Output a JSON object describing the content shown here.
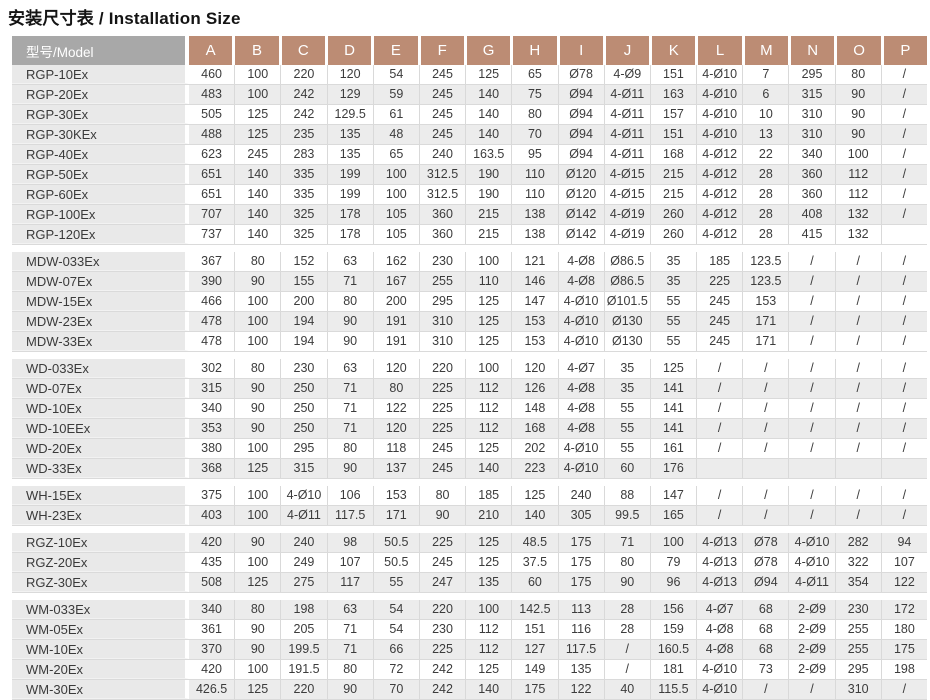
{
  "title": "安装尺寸表 / Installation Size",
  "colors": {
    "header_model_bg": "#a8a8a8",
    "header_letter_bg": "#bc8c74",
    "stripe_bg": "#ececec",
    "name_col_bg": "#e9e9e9"
  },
  "table": {
    "model_header": "型号/Model",
    "columns": [
      "A",
      "B",
      "C",
      "D",
      "E",
      "F",
      "G",
      "H",
      "I",
      "J",
      "K",
      "L",
      "M",
      "N",
      "O",
      "P"
    ],
    "sections": [
      {
        "group": "RGP",
        "rows": [
          {
            "model": "RGP-10Ex",
            "values": [
              "460",
              "100",
              "220",
              "120",
              "54",
              "245",
              "125",
              "65",
              "Ø78",
              "4-Ø9",
              "151",
              "4-Ø10",
              "7",
              "295",
              "80",
              "/"
            ]
          },
          {
            "model": "RGP-20Ex",
            "values": [
              "483",
              "100",
              "242",
              "129",
              "59",
              "245",
              "140",
              "75",
              "Ø94",
              "4-Ø11",
              "163",
              "4-Ø10",
              "6",
              "315",
              "90",
              "/"
            ]
          },
          {
            "model": "RGP-30Ex",
            "values": [
              "505",
              "125",
              "242",
              "129.5",
              "61",
              "245",
              "140",
              "80",
              "Ø94",
              "4-Ø11",
              "157",
              "4-Ø10",
              "10",
              "310",
              "90",
              "/"
            ]
          },
          {
            "model": "RGP-30KEx",
            "values": [
              "488",
              "125",
              "235",
              "135",
              "48",
              "245",
              "140",
              "70",
              "Ø94",
              "4-Ø11",
              "151",
              "4-Ø10",
              "13",
              "310",
              "90",
              "/"
            ]
          },
          {
            "model": "RGP-40Ex",
            "values": [
              "623",
              "245",
              "283",
              "135",
              "65",
              "240",
              "163.5",
              "95",
              "Ø94",
              "4-Ø11",
              "168",
              "4-Ø12",
              "22",
              "340",
              "100",
              "/"
            ]
          },
          {
            "model": "RGP-50Ex",
            "values": [
              "651",
              "140",
              "335",
              "199",
              "100",
              "312.5",
              "190",
              "110",
              "Ø120",
              "4-Ø15",
              "215",
              "4-Ø12",
              "28",
              "360",
              "112",
              "/"
            ]
          },
          {
            "model": "RGP-60Ex",
            "values": [
              "651",
              "140",
              "335",
              "199",
              "100",
              "312.5",
              "190",
              "110",
              "Ø120",
              "4-Ø15",
              "215",
              "4-Ø12",
              "28",
              "360",
              "112",
              "/"
            ]
          },
          {
            "model": "RGP-100Ex",
            "values": [
              "707",
              "140",
              "325",
              "178",
              "105",
              "360",
              "215",
              "138",
              "Ø142",
              "4-Ø19",
              "260",
              "4-Ø12",
              "28",
              "408",
              "132",
              "/"
            ]
          },
          {
            "model": "RGP-120Ex",
            "values": [
              "737",
              "140",
              "325",
              "178",
              "105",
              "360",
              "215",
              "138",
              "Ø142",
              "4-Ø19",
              "260",
              "4-Ø12",
              "28",
              "415",
              "132",
              ""
            ]
          }
        ]
      },
      {
        "group": "MDW",
        "rows": [
          {
            "model": "MDW-033Ex",
            "values": [
              "367",
              "80",
              "152",
              "63",
              "162",
              "230",
              "100",
              "121",
              "4-Ø8",
              "Ø86.5",
              "35",
              "185",
              "123.5",
              "/",
              "/",
              "/"
            ]
          },
          {
            "model": "MDW-07Ex",
            "values": [
              "390",
              "90",
              "155",
              "71",
              "167",
              "255",
              "110",
              "146",
              "4-Ø8",
              "Ø86.5",
              "35",
              "225",
              "123.5",
              "/",
              "/",
              "/"
            ]
          },
          {
            "model": "MDW-15Ex",
            "values": [
              "466",
              "100",
              "200",
              "80",
              "200",
              "295",
              "125",
              "147",
              "4-Ø10",
              "Ø101.5",
              "55",
              "245",
              "153",
              "/",
              "/",
              "/"
            ]
          },
          {
            "model": "MDW-23Ex",
            "values": [
              "478",
              "100",
              "194",
              "90",
              "191",
              "310",
              "125",
              "153",
              "4-Ø10",
              "Ø130",
              "55",
              "245",
              "171",
              "/",
              "/",
              "/"
            ]
          },
          {
            "model": "MDW-33Ex",
            "values": [
              "478",
              "100",
              "194",
              "90",
              "191",
              "310",
              "125",
              "153",
              "4-Ø10",
              "Ø130",
              "55",
              "245",
              "171",
              "/",
              "/",
              "/"
            ]
          }
        ]
      },
      {
        "group": "WD",
        "rows": [
          {
            "model": "WD-033Ex",
            "values": [
              "302",
              "80",
              "230",
              "63",
              "120",
              "220",
              "100",
              "120",
              "4-Ø7",
              "35",
              "125",
              "/",
              "/",
              "/",
              "/",
              "/"
            ]
          },
          {
            "model": "WD-07Ex",
            "values": [
              "315",
              "90",
              "250",
              "71",
              "80",
              "225",
              "112",
              "126",
              "4-Ø8",
              "35",
              "141",
              "/",
              "/",
              "/",
              "/",
              "/"
            ]
          },
          {
            "model": "WD-10Ex",
            "values": [
              "340",
              "90",
              "250",
              "71",
              "122",
              "225",
              "112",
              "148",
              "4-Ø8",
              "55",
              "141",
              "/",
              "/",
              "/",
              "/",
              "/"
            ]
          },
          {
            "model": "WD-10EEx",
            "values": [
              "353",
              "90",
              "250",
              "71",
              "120",
              "225",
              "112",
              "168",
              "4-Ø8",
              "55",
              "141",
              "/",
              "/",
              "/",
              "/",
              "/"
            ]
          },
          {
            "model": "WD-20Ex",
            "values": [
              "380",
              "100",
              "295",
              "80",
              "118",
              "245",
              "125",
              "202",
              "4-Ø10",
              "55",
              "161",
              "/",
              "/",
              "/",
              "/",
              "/"
            ]
          },
          {
            "model": "WD-33Ex",
            "values": [
              "368",
              "125",
              "315",
              "90",
              "137",
              "245",
              "140",
              "223",
              "4-Ø10",
              "60",
              "176",
              "",
              "",
              "",
              "",
              ""
            ]
          }
        ]
      },
      {
        "group": "WH",
        "rows": [
          {
            "model": "WH-15Ex",
            "values": [
              "375",
              "100",
              "4-Ø10",
              "106",
              "153",
              "80",
              "185",
              "125",
              "240",
              "88",
              "147",
              "/",
              "/",
              "/",
              "/",
              "/"
            ]
          },
          {
            "model": "WH-23Ex",
            "values": [
              "403",
              "100",
              "4-Ø11",
              "117.5",
              "171",
              "90",
              "210",
              "140",
              "305",
              "99.5",
              "165",
              "/",
              "/",
              "/",
              "/",
              "/"
            ]
          }
        ]
      },
      {
        "group": "RGZ",
        "rows": [
          {
            "model": "RGZ-10Ex",
            "values": [
              "420",
              "90",
              "240",
              "98",
              "50.5",
              "225",
              "125",
              "48.5",
              "175",
              "71",
              "100",
              "4-Ø13",
              "Ø78",
              "4-Ø10",
              "282",
              "94"
            ]
          },
          {
            "model": "RGZ-20Ex",
            "values": [
              "435",
              "100",
              "249",
              "107",
              "50.5",
              "245",
              "125",
              "37.5",
              "175",
              "80",
              "79",
              "4-Ø13",
              "Ø78",
              "4-Ø10",
              "322",
              "107"
            ]
          },
          {
            "model": "RGZ-30Ex",
            "values": [
              "508",
              "125",
              "275",
              "117",
              "55",
              "247",
              "135",
              "60",
              "175",
              "90",
              "96",
              "4-Ø13",
              "Ø94",
              "4-Ø11",
              "354",
              "122"
            ]
          }
        ]
      },
      {
        "group": "WM",
        "rows": [
          {
            "model": "WM-033Ex",
            "values": [
              "340",
              "80",
              "198",
              "63",
              "54",
              "220",
              "100",
              "142.5",
              "113",
              "28",
              "156",
              "4-Ø7",
              "68",
              "2-Ø9",
              "230",
              "172"
            ]
          },
          {
            "model": "WM-05Ex",
            "values": [
              "361",
              "90",
              "205",
              "71",
              "54",
              "230",
              "112",
              "151",
              "116",
              "28",
              "159",
              "4-Ø8",
              "68",
              "2-Ø9",
              "255",
              "180"
            ]
          },
          {
            "model": "WM-10Ex",
            "values": [
              "370",
              "90",
              "199.5",
              "71",
              "66",
              "225",
              "112",
              "127",
              "117.5",
              "/",
              "160.5",
              "4-Ø8",
              "68",
              "2-Ø9",
              "255",
              "175"
            ]
          },
          {
            "model": "WM-20Ex",
            "values": [
              "420",
              "100",
              "191.5",
              "80",
              "72",
              "242",
              "125",
              "149",
              "135",
              "/",
              "181",
              "4-Ø10",
              "73",
              "2-Ø9",
              "295",
              "198"
            ]
          },
          {
            "model": "WM-30Ex",
            "values": [
              "426.5",
              "125",
              "220",
              "90",
              "70",
              "242",
              "140",
              "175",
              "122",
              "40",
              "115.5",
              "4-Ø10",
              "/",
              "/",
              "310",
              "/"
            ]
          }
        ]
      }
    ]
  }
}
